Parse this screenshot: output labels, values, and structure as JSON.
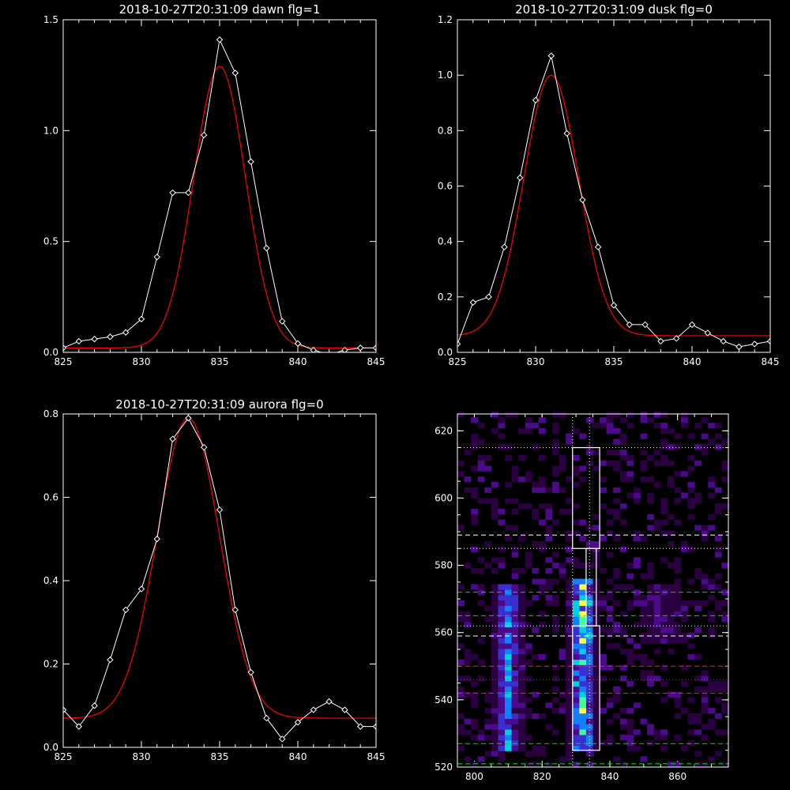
{
  "chart_data": [
    {
      "type": "line",
      "title": "2018-10-27T20:31:09 dawn flg=1",
      "xlim": [
        825,
        845
      ],
      "ylim": [
        0,
        1.5
      ],
      "xticks": [
        "825",
        "830",
        "835",
        "840",
        "845"
      ],
      "yticks": [
        "0.0",
        "0.5",
        "1.0",
        "1.5"
      ],
      "colors": {
        "data": "#ffffff",
        "fit": "#ff0000"
      },
      "series": [
        {
          "kind": "data",
          "x": [
            825,
            826,
            827,
            828,
            829,
            830,
            831,
            832,
            833,
            834,
            835,
            836,
            837,
            838,
            839,
            840,
            841,
            842,
            843,
            844,
            845
          ],
          "y": [
            0.02,
            0.05,
            0.06,
            0.07,
            0.09,
            0.15,
            0.43,
            0.72,
            0.72,
            0.98,
            1.41,
            1.26,
            0.86,
            0.47,
            0.14,
            0.04,
            0.01,
            -0.01,
            0.01,
            0.02,
            0.02
          ]
        },
        {
          "kind": "fit",
          "model": "gaussian",
          "center": 835.0,
          "amplitude": 1.27,
          "sigma": 1.65,
          "offset": 0.02
        }
      ]
    },
    {
      "type": "line",
      "title": "2018-10-27T20:31:09 dusk flg=0",
      "xlim": [
        825,
        845
      ],
      "ylim": [
        0,
        1.2
      ],
      "xticks": [
        "825",
        "830",
        "835",
        "840",
        "845"
      ],
      "yticks": [
        "0.0",
        "0.2",
        "0.4",
        "0.6",
        "0.8",
        "1.0",
        "1.2"
      ],
      "colors": {
        "data": "#ffffff",
        "fit": "#ff0000"
      },
      "series": [
        {
          "kind": "data",
          "x": [
            825,
            826,
            827,
            828,
            829,
            830,
            831,
            832,
            833,
            834,
            835,
            836,
            837,
            838,
            839,
            840,
            841,
            842,
            843,
            844,
            845
          ],
          "y": [
            0.03,
            0.18,
            0.2,
            0.38,
            0.63,
            0.91,
            1.07,
            0.79,
            0.55,
            0.38,
            0.17,
            0.1,
            0.1,
            0.04,
            0.05,
            0.1,
            0.07,
            0.04,
            0.02,
            0.03,
            0.04
          ]
        },
        {
          "kind": "fit",
          "model": "gaussian",
          "center": 831.0,
          "amplitude": 0.94,
          "sigma": 1.75,
          "offset": 0.06
        }
      ]
    },
    {
      "type": "line",
      "title": "2018-10-27T20:31:09 aurora flg=0",
      "xlim": [
        825,
        845
      ],
      "ylim": [
        0,
        0.8
      ],
      "xticks": [
        "825",
        "830",
        "835",
        "840",
        "845"
      ],
      "yticks": [
        "0.0",
        "0.2",
        "0.4",
        "0.6",
        "0.8"
      ],
      "colors": {
        "data": "#ffffff",
        "fit": "#ff0000"
      },
      "series": [
        {
          "kind": "data",
          "x": [
            825,
            826,
            827,
            828,
            829,
            830,
            831,
            832,
            833,
            834,
            835,
            836,
            837,
            838,
            839,
            840,
            841,
            842,
            843,
            844,
            845
          ],
          "y": [
            0.09,
            0.05,
            0.1,
            0.21,
            0.33,
            0.38,
            0.5,
            0.74,
            0.79,
            0.72,
            0.57,
            0.33,
            0.18,
            0.07,
            0.02,
            0.06,
            0.09,
            0.11,
            0.09,
            0.05,
            0.05
          ]
        },
        {
          "kind": "fit",
          "model": "gaussian",
          "center": 833.0,
          "amplitude": 0.72,
          "sigma": 2.0,
          "offset": 0.07
        }
      ]
    },
    {
      "type": "heatmap",
      "xlim": [
        795,
        875
      ],
      "ylim": [
        520,
        625
      ],
      "xticks": [
        "800",
        "820",
        "840",
        "860"
      ],
      "yticks": [
        "520",
        "540",
        "560",
        "580",
        "600",
        "620"
      ],
      "colormap": [
        "#000000",
        "#2a0040",
        "#4a0a8a",
        "#3a30d0",
        "#1080ff",
        "#00d0e0",
        "#40ff90",
        "#ffff40"
      ],
      "emission_bands": [
        {
          "x_center": 810,
          "y_range": [
            524,
            574
          ],
          "peak": 0.65
        },
        {
          "x_center": 832,
          "y_range": [
            524,
            576
          ],
          "peak": 0.95
        },
        {
          "x_center": 855,
          "y_range": [
            556,
            574
          ],
          "peak": 0.35
        }
      ],
      "boxes": [
        {
          "x": [
            829,
            837
          ],
          "y": [
            585,
            615
          ]
        },
        {
          "x": [
            833,
            836
          ],
          "y": [
            562,
            585
          ]
        },
        {
          "x": [
            829,
            837
          ],
          "y": [
            525,
            562
          ]
        }
      ],
      "vertical_dotted_lines": [
        829,
        834
      ],
      "horizontal_lines": [
        {
          "y": 615,
          "style": "dotted",
          "color": "#ffffff"
        },
        {
          "y": 589,
          "style": "dashed",
          "color": "#ffffff"
        },
        {
          "y": 585,
          "style": "dotted",
          "color": "#ffffff"
        },
        {
          "y": 572,
          "style": "dashed",
          "color": "#00dd00"
        },
        {
          "y": 565,
          "style": "dashed",
          "color": "#00dd00"
        },
        {
          "y": 562,
          "style": "dotted",
          "color": "#ffffff"
        },
        {
          "y": 559,
          "style": "dashed",
          "color": "#ffffff"
        },
        {
          "y": 550,
          "style": "dashed",
          "color": "#ff2020"
        },
        {
          "y": 546,
          "style": "dotted",
          "color": "#ff2020"
        },
        {
          "y": 542,
          "style": "dashed",
          "color": "#ff2020"
        },
        {
          "y": 527,
          "style": "dashed",
          "color": "#00dd00"
        },
        {
          "y": 521,
          "style": "dashed",
          "color": "#00dd00"
        }
      ]
    }
  ]
}
